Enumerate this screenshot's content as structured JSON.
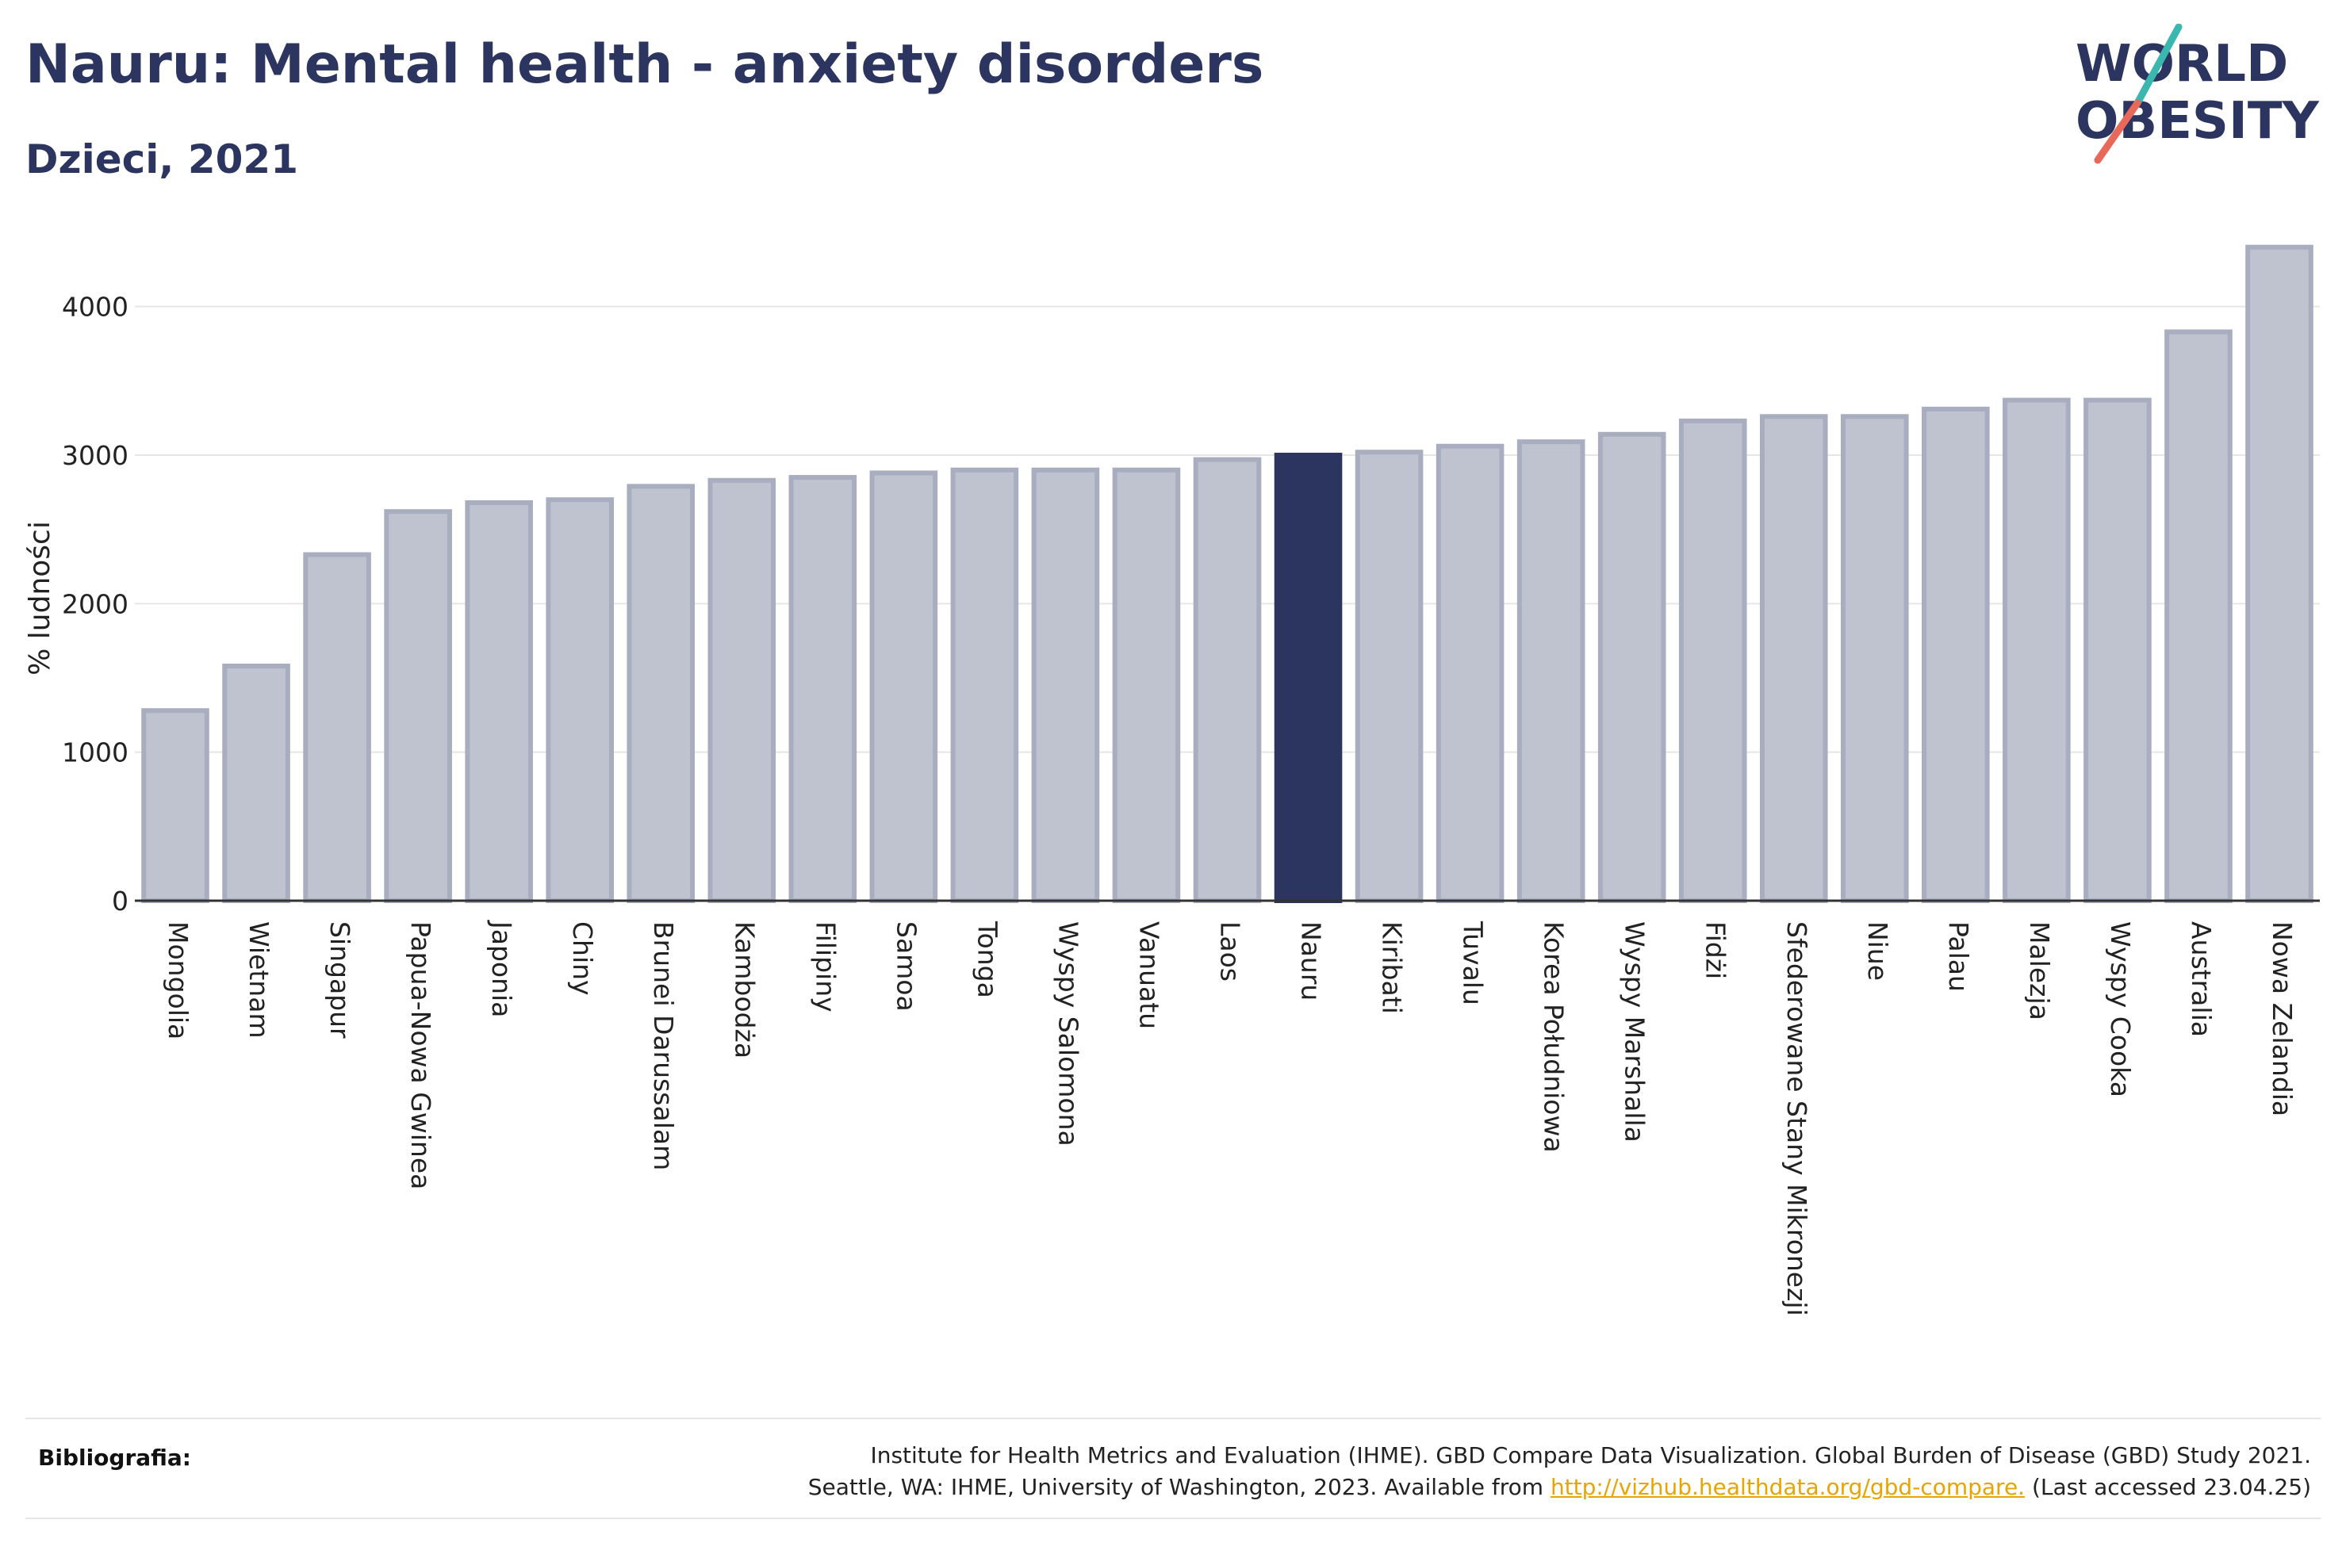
{
  "title": "Nauru: Mental health - anxiety disorders",
  "subtitle": "Dzieci, 2021",
  "logo": {
    "line1": "WORLD",
    "line2": "OBESITY",
    "text_color": "#2b355f",
    "slash_colors": [
      "#3ab8b0",
      "#e8685a"
    ]
  },
  "footer": {
    "label": "Bibliografia:",
    "line1": "Institute for Health Metrics and Evaluation (IHME). GBD Compare Data Visualization. Global Burden of Disease (GBD) Study 2021.",
    "line2_prefix": "Seattle, WA: IHME, University of Washington, 2023. Available from ",
    "link": "http://vizhub.healthdata.org/gbd-compare.",
    "line2_suffix": " (Last accessed 23.04.25)"
  },
  "chart_data": {
    "type": "bar",
    "title": "Nauru: Mental health - anxiety disorders",
    "subtitle": "Dzieci, 2021",
    "xlabel": "",
    "ylabel": "% ludności",
    "ylim": [
      0,
      4500
    ],
    "yticks": [
      0,
      1000,
      2000,
      3000,
      4000
    ],
    "grid": true,
    "highlight": "Nauru",
    "colors": {
      "bar": "#bfc3d0",
      "bar_edge": "#a8adc0",
      "highlight": "#2b355f"
    },
    "categories": [
      "Mongolia",
      "Wietnam",
      "Singapur",
      "Papua-Nowa Gwinea",
      "Japonia",
      "Chiny",
      "Brunei Darussalam",
      "Kambodża",
      "Filipiny",
      "Samoa",
      "Tonga",
      "Wyspy Salomona",
      "Vanuatu",
      "Laos",
      "Nauru",
      "Kiribati",
      "Tuvalu",
      "Korea Południowa",
      "Wyspy Marshalla",
      "Fidżi",
      "Sfederowane Stany Mikronezji",
      "Niue",
      "Palau",
      "Malezja",
      "Wyspy Cooka",
      "Australia",
      "Nowa Zelandia"
    ],
    "values": [
      1280,
      1580,
      2330,
      2620,
      2680,
      2700,
      2790,
      2830,
      2850,
      2880,
      2900,
      2900,
      2900,
      2970,
      3000,
      3020,
      3060,
      3090,
      3140,
      3230,
      3260,
      3260,
      3310,
      3370,
      3370,
      3830,
      4400
    ]
  }
}
